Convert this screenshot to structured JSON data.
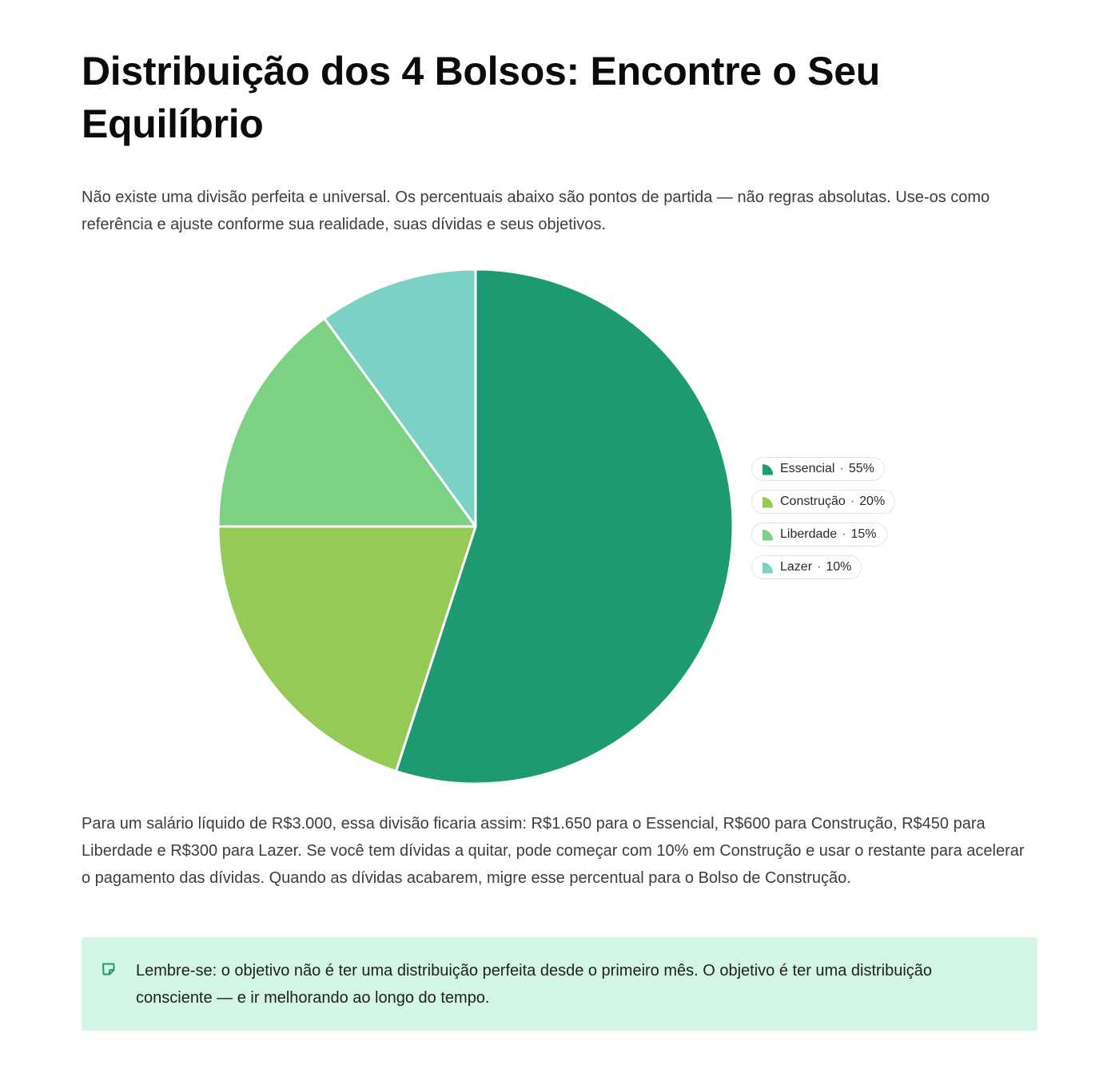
{
  "title": "Distribuição dos 4 Bolsos: Encontre o Seu Equilíbrio",
  "intro": "Não existe uma divisão perfeita e universal. Os percentuais abaixo são pontos de partida — não regras absolutas. Use-os como referência e ajuste conforme sua realidade, suas dívidas e seus objetivos.",
  "chart_data": {
    "type": "pie",
    "categories": [
      "Essencial",
      "Construção",
      "Liberdade",
      "Lazer"
    ],
    "values": [
      55,
      20,
      15,
      10
    ],
    "unit": "%",
    "colors": [
      "#1e9a72",
      "#94ca55",
      "#7bd283",
      "#7bd1c3"
    ],
    "legend_placement": "right",
    "title": ""
  },
  "legend": [
    {
      "label": "Essencial",
      "value": "55%",
      "color": "#1e9a72"
    },
    {
      "label": "Construção",
      "value": "20%",
      "color": "#94ca55"
    },
    {
      "label": "Liberdade",
      "value": "15%",
      "color": "#7bd283"
    },
    {
      "label": "Lazer",
      "value": "10%",
      "color": "#7bd1c3"
    }
  ],
  "body": "Para um salário líquido de R$3.000, essa divisão ficaria assim: R$1.650 para o Essencial, R$600 para Construção, R$450 para Liberdade e R$300 para Lazer. Se você tem dívidas a quitar, pode começar com 10% em Construção e usar o restante para acelerar o pagamento das dívidas. Quando as dívidas acabarem, migre esse percentual para o Bolso de Construção.",
  "callout": {
    "icon": "note-icon",
    "text": "Lembre-se: o objetivo não é ter uma distribuição perfeita desde o primeiro mês. O objetivo é ter uma distribuição consciente — e ir melhorando ao longo do tempo.",
    "background": "#d3f5e6"
  }
}
